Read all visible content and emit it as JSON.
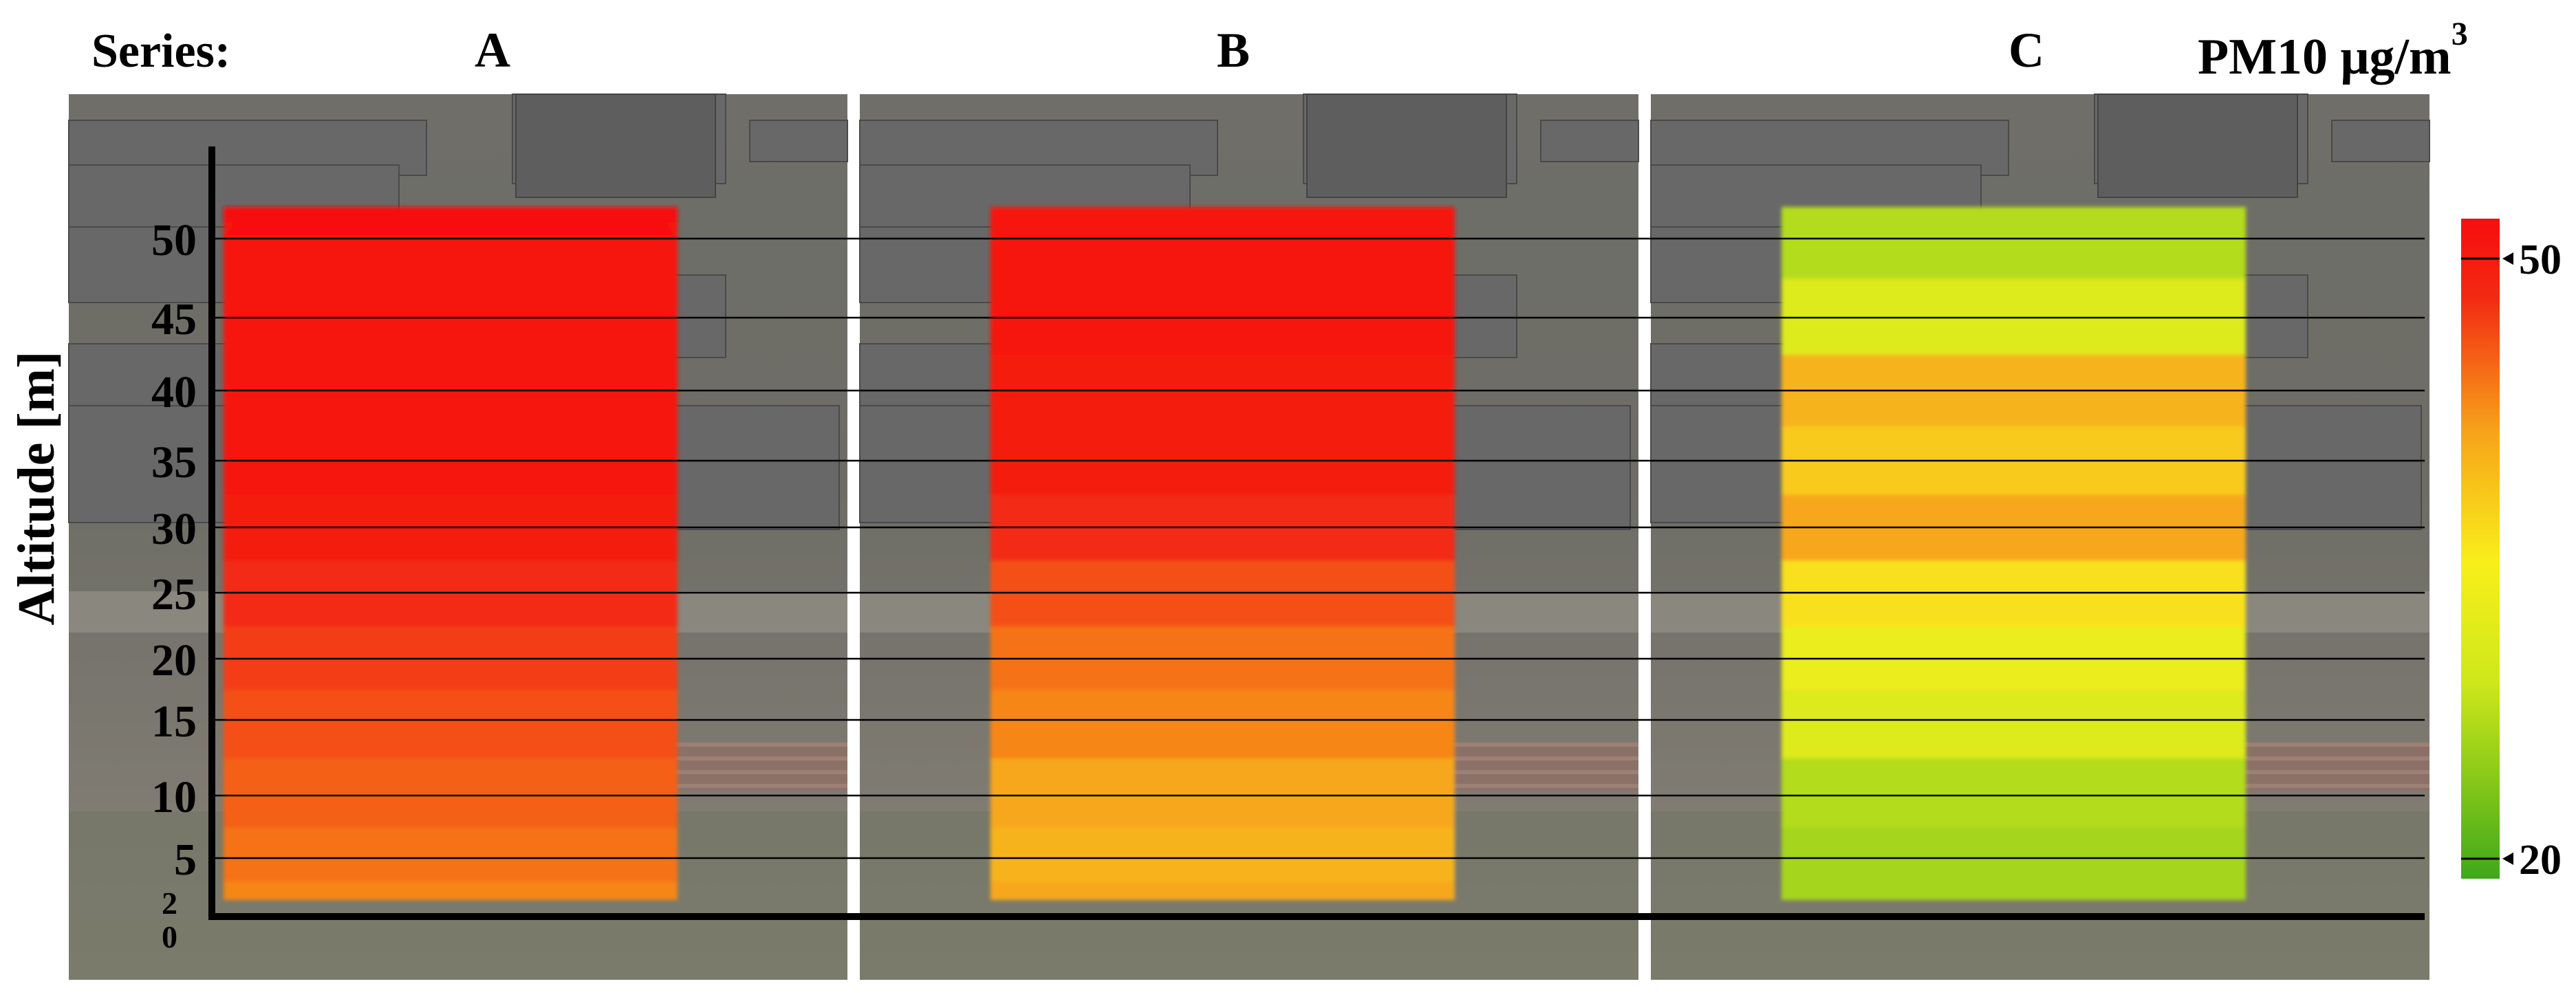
{
  "header": {
    "series_label": "Series:",
    "units_label": "PM10 μg/m",
    "units_exponent": "3"
  },
  "chart_data": {
    "type": "heatmap",
    "title": "",
    "ylabel": "Altitude [m]",
    "y_ticks": [
      0,
      2,
      5,
      10,
      15,
      20,
      25,
      30,
      35,
      40,
      45,
      50
    ],
    "ylim": [
      0,
      50
    ],
    "panels": [
      {
        "name": "A",
        "profile": [
          {
            "altitude": 2,
            "value": 43
          },
          {
            "altitude": 5,
            "value": 44
          },
          {
            "altitude": 10,
            "value": 45
          },
          {
            "altitude": 15,
            "value": 46
          },
          {
            "altitude": 20,
            "value": 47
          },
          {
            "altitude": 25,
            "value": 48
          },
          {
            "altitude": 30,
            "value": 50
          },
          {
            "altitude": 35,
            "value": 51
          },
          {
            "altitude": 40,
            "value": 51
          },
          {
            "altitude": 45,
            "value": 51
          },
          {
            "altitude": 50,
            "value": 51
          },
          {
            "altitude": 52,
            "value": 52
          }
        ]
      },
      {
        "name": "B",
        "profile": [
          {
            "altitude": 2,
            "value": 41
          },
          {
            "altitude": 5,
            "value": 40
          },
          {
            "altitude": 10,
            "value": 41
          },
          {
            "altitude": 15,
            "value": 43
          },
          {
            "altitude": 20,
            "value": 44
          },
          {
            "altitude": 25,
            "value": 46
          },
          {
            "altitude": 30,
            "value": 48
          },
          {
            "altitude": 35,
            "value": 50
          },
          {
            "altitude": 40,
            "value": 50
          },
          {
            "altitude": 45,
            "value": 51
          },
          {
            "altitude": 50,
            "value": 51
          },
          {
            "altitude": 52,
            "value": 51
          }
        ]
      },
      {
        "name": "C",
        "profile": [
          {
            "altitude": 2,
            "value": 26
          },
          {
            "altitude": 5,
            "value": 26
          },
          {
            "altitude": 10,
            "value": 27
          },
          {
            "altitude": 15,
            "value": 31
          },
          {
            "altitude": 20,
            "value": 33
          },
          {
            "altitude": 25,
            "value": 36
          },
          {
            "altitude": 30,
            "value": 41
          },
          {
            "altitude": 35,
            "value": 38
          },
          {
            "altitude": 40,
            "value": 40
          },
          {
            "altitude": 45,
            "value": 31
          },
          {
            "altitude": 50,
            "value": 27
          },
          {
            "altitude": 52,
            "value": 27
          }
        ]
      }
    ],
    "colorbar": {
      "min": 19,
      "max": 52,
      "ticks": [
        20,
        50
      ],
      "colors": [
        "#3fa81a",
        "#cfe81a",
        "#f8ef1a",
        "#f7a21a",
        "#f22a12",
        "#f70e0e"
      ]
    },
    "background": "aerial photo with gray 3D buildings"
  }
}
